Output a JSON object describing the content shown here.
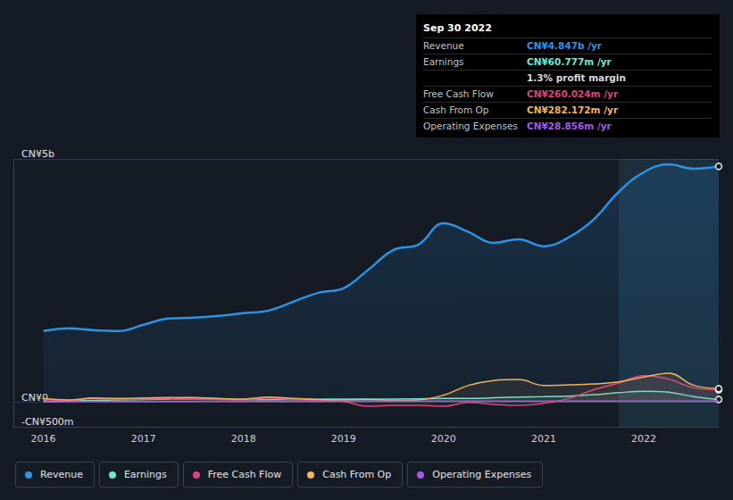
{
  "chart_data": {
    "type": "line",
    "x": [
      2016.0,
      2016.25,
      2016.5,
      2016.75,
      2017.0,
      2017.25,
      2017.5,
      2017.75,
      2018.0,
      2018.25,
      2018.5,
      2018.75,
      2019.0,
      2019.25,
      2019.5,
      2019.75,
      2020.0,
      2020.25,
      2020.5,
      2020.75,
      2021.0,
      2021.25,
      2021.5,
      2021.75,
      2022.0,
      2022.25,
      2022.5,
      2022.75
    ],
    "xlim": [
      2015.7,
      2022.75
    ],
    "xticks": [
      2016,
      2017,
      2018,
      2019,
      2020,
      2021,
      2022
    ],
    "ylim": [
      -500,
      5000
    ],
    "yticks": [
      {
        "value": -500,
        "label": "-CN¥500m"
      },
      {
        "value": 0,
        "label": "CN¥0"
      },
      {
        "value": 5000,
        "label": "CN¥5b"
      }
    ],
    "grid": true,
    "series": [
      {
        "name": "Revenue",
        "color": "#2e93e3",
        "values": [
          1465,
          1520,
          1483,
          1465,
          1593,
          1722,
          1740,
          1777,
          1832,
          1886,
          2070,
          2253,
          2344,
          2729,
          3132,
          3242,
          3681,
          3498,
          3278,
          3352,
          3205,
          3388,
          3755,
          4322,
          4725,
          4890,
          4798,
          4847
        ]
      },
      {
        "name": "Earnings",
        "color": "#6ee8d0",
        "values": [
          20,
          30,
          40,
          50,
          60,
          70,
          75,
          70,
          60,
          55,
          60,
          65,
          70,
          70,
          70,
          75,
          80,
          80,
          95,
          110,
          120,
          130,
          160,
          200,
          230,
          210,
          120,
          60.777
        ]
      },
      {
        "name": "Free Cash Flow",
        "color": "#d9457d",
        "values": [
          60,
          40,
          80,
          60,
          70,
          80,
          80,
          60,
          50,
          90,
          60,
          40,
          20,
          -80,
          -60,
          -60,
          -80,
          0,
          -40,
          -60,
          -20,
          80,
          260,
          400,
          550,
          480,
          300,
          260.024
        ]
      },
      {
        "name": "Cash From Op",
        "color": "#f0b35e",
        "values": [
          80,
          50,
          90,
          80,
          90,
          100,
          100,
          80,
          70,
          110,
          80,
          60,
          50,
          60,
          40,
          50,
          150,
          350,
          450,
          470,
          350,
          360,
          380,
          420,
          520,
          600,
          350,
          282.172
        ]
      },
      {
        "name": "Operating Expenses",
        "color": "#a55ae3",
        "values": [
          15,
          15,
          18,
          18,
          20,
          20,
          20,
          22,
          22,
          22,
          24,
          24,
          25,
          25,
          26,
          26,
          27,
          27,
          28,
          28,
          28,
          29,
          29,
          29,
          29,
          29,
          29,
          28.856
        ]
      }
    ],
    "annotation": {
      "title": "Sep 30 2022",
      "rows": [
        {
          "label": "Revenue",
          "value": "CN¥4.847b /yr"
        },
        {
          "label": "Earnings",
          "value": "CN¥60.777m /yr"
        },
        {
          "value": "1.3% profit margin"
        },
        {
          "label": "Free Cash Flow",
          "value": "CN¥260.024m /yr"
        },
        {
          "label": "Cash From Op",
          "value": "CN¥282.172m /yr"
        },
        {
          "label": "Operating Expenses",
          "value": "CN¥28.856m /yr"
        }
      ]
    }
  }
}
